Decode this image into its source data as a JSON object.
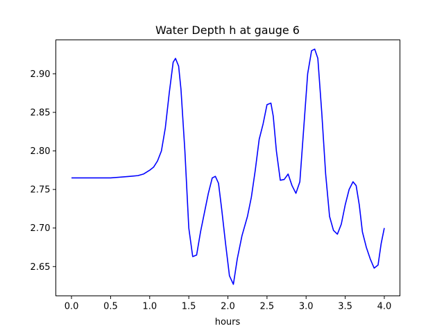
{
  "chart_data": {
    "type": "line",
    "title": "Water Depth h at gauge 6",
    "xlabel": "hours",
    "ylabel": "",
    "xlim": [
      -0.2,
      4.2
    ],
    "ylim": [
      2.612,
      2.944
    ],
    "x_ticks": [
      0.0,
      0.5,
      1.0,
      1.5,
      2.0,
      2.5,
      3.0,
      3.5,
      4.0
    ],
    "x_tick_labels": [
      "0.0",
      "0.5",
      "1.0",
      "1.5",
      "2.0",
      "2.5",
      "3.0",
      "3.5",
      "4.0"
    ],
    "y_ticks": [
      2.65,
      2.7,
      2.75,
      2.8,
      2.85,
      2.9
    ],
    "y_tick_labels": [
      "2.65",
      "2.70",
      "2.75",
      "2.80",
      "2.85",
      "2.90"
    ],
    "grid": false,
    "legend": "none",
    "line_color": "#0000ff",
    "series": [
      {
        "x": [
          0.0,
          0.5,
          0.75,
          0.85,
          0.92,
          1.0,
          1.05,
          1.1,
          1.15,
          1.2,
          1.25,
          1.3,
          1.33,
          1.37,
          1.4,
          1.45,
          1.5,
          1.55,
          1.6,
          1.65,
          1.7,
          1.75,
          1.8,
          1.84,
          1.88,
          1.92,
          1.97,
          2.02,
          2.07,
          2.12,
          2.18,
          2.25,
          2.3,
          2.35,
          2.4,
          2.45,
          2.5,
          2.55,
          2.58,
          2.62,
          2.67,
          2.72,
          2.77,
          2.82,
          2.87,
          2.92,
          2.97,
          3.02,
          3.07,
          3.11,
          3.15,
          3.2,
          3.25,
          3.3,
          3.35,
          3.4,
          3.45,
          3.5,
          3.55,
          3.6,
          3.64,
          3.68,
          3.72,
          3.77,
          3.82,
          3.87,
          3.92,
          3.96,
          4.0
        ],
        "y": [
          2.765,
          2.765,
          2.767,
          2.768,
          2.77,
          2.775,
          2.779,
          2.787,
          2.8,
          2.83,
          2.875,
          2.915,
          2.92,
          2.91,
          2.88,
          2.8,
          2.7,
          2.663,
          2.665,
          2.695,
          2.72,
          2.745,
          2.765,
          2.767,
          2.758,
          2.725,
          2.68,
          2.638,
          2.627,
          2.66,
          2.69,
          2.715,
          2.74,
          2.775,
          2.815,
          2.835,
          2.86,
          2.862,
          2.845,
          2.8,
          2.762,
          2.763,
          2.77,
          2.755,
          2.745,
          2.76,
          2.83,
          2.9,
          2.93,
          2.932,
          2.92,
          2.85,
          2.77,
          2.715,
          2.697,
          2.692,
          2.705,
          2.73,
          2.75,
          2.76,
          2.755,
          2.73,
          2.695,
          2.675,
          2.66,
          2.648,
          2.652,
          2.68,
          2.7
        ]
      }
    ]
  }
}
